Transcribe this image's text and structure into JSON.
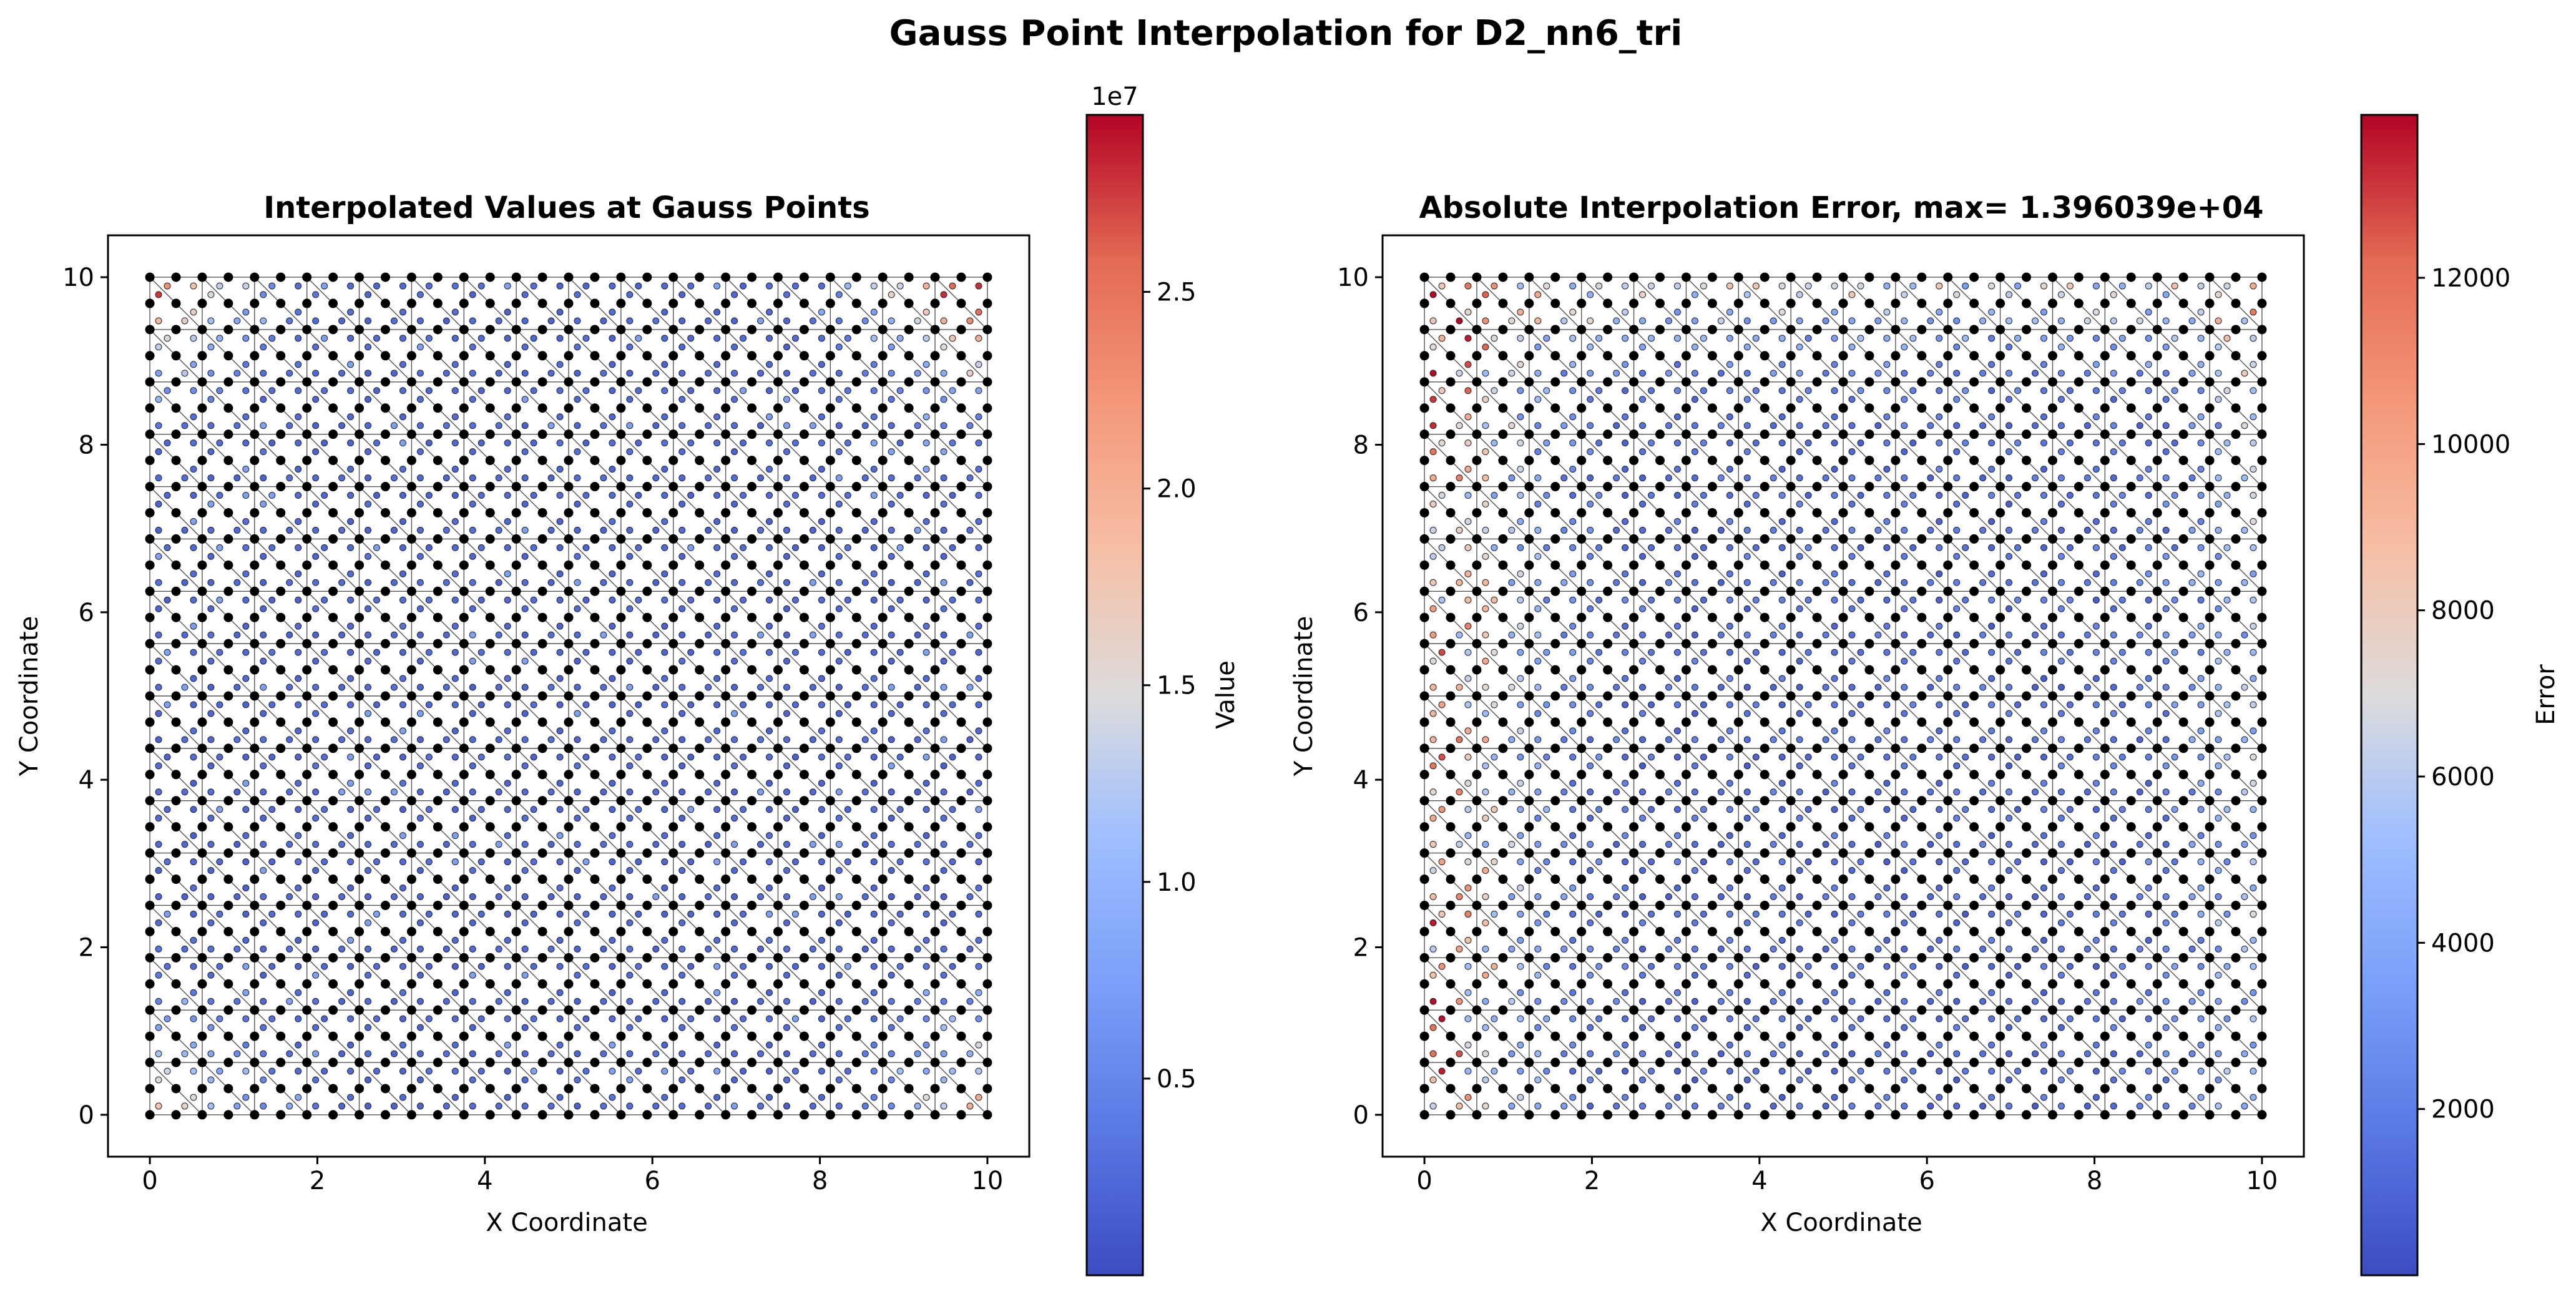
{
  "figure": {
    "suptitle": "Gauss Point Interpolation for D2_nn6_tri"
  },
  "chart_data": [
    {
      "type": "scatter",
      "title": "Interpolated Values at Gauss Points",
      "xlabel": "X Coordinate",
      "ylabel": "Y Coordinate",
      "xlim": [
        -0.5,
        10.5
      ],
      "ylim": [
        -0.5,
        10.5
      ],
      "xticks": [
        0,
        2,
        4,
        6,
        8,
        10
      ],
      "yticks": [
        0,
        2,
        4,
        6,
        8,
        10
      ],
      "x_tick_labels": [
        "0",
        "2",
        "4",
        "6",
        "8",
        "10"
      ],
      "y_tick_labels": [
        "0",
        "2",
        "4",
        "6",
        "8",
        "10"
      ],
      "mesh": {
        "description": "structured triangular mesh of 6-node triangles",
        "elements_per_side": 16,
        "domain": [
          0,
          10
        ],
        "node_color": "#000000",
        "edge_color": "#555555"
      },
      "gauss_points_per_element": 3,
      "colormap": "coolwarm",
      "colorbar": {
        "label": "Value",
        "offset_label": "1e7",
        "range": [
          0.0,
          2.95
        ],
        "ticks": [
          0.5,
          1.0,
          1.5,
          2.0,
          2.5
        ],
        "tick_labels": [
          "0.5",
          "1.0",
          "1.5",
          "2.0",
          "2.5"
        ]
      },
      "value_pattern": "mostly low (blue); high values near corners, max near top-right and top-left"
    },
    {
      "type": "scatter",
      "title": "Absolute Interpolation Error, max= 1.396039e+04",
      "xlabel": "X Coordinate",
      "ylabel": "Y Coordinate",
      "xlim": [
        -0.5,
        10.5
      ],
      "ylim": [
        -0.5,
        10.5
      ],
      "xticks": [
        0,
        2,
        4,
        6,
        8,
        10
      ],
      "yticks": [
        0,
        2,
        4,
        6,
        8,
        10
      ],
      "x_tick_labels": [
        "0",
        "2",
        "4",
        "6",
        "8",
        "10"
      ],
      "y_tick_labels": [
        "0",
        "2",
        "4",
        "6",
        "8",
        "10"
      ],
      "mesh": {
        "description": "structured triangular mesh of 6-node triangles",
        "elements_per_side": 16,
        "domain": [
          0,
          10
        ],
        "node_color": "#000000",
        "edge_color": "#555555"
      },
      "gauss_points_per_element": 3,
      "colormap": "coolwarm",
      "colorbar": {
        "label": "Error",
        "range": [
          0,
          13960.39
        ],
        "ticks": [
          2000,
          4000,
          6000,
          8000,
          10000,
          12000
        ],
        "tick_labels": [
          "2000",
          "4000",
          "6000",
          "8000",
          "10000",
          "12000"
        ]
      },
      "max_error": 13960.39,
      "value_pattern": "low (blue) in interior; larger errors (red) along left edge and top rows, some near right edge"
    }
  ]
}
